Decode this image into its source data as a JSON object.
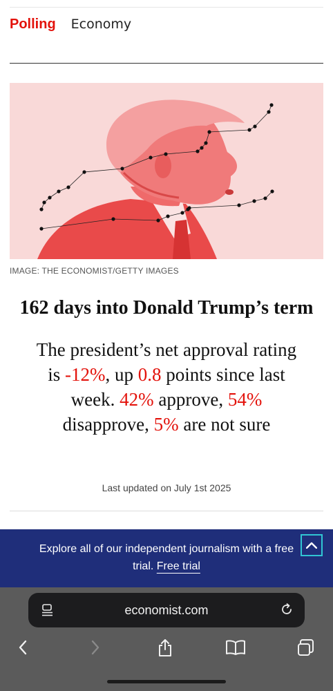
{
  "nav": {
    "tabs": [
      {
        "label": "Polling",
        "active": true
      },
      {
        "label": "Economy",
        "active": false
      }
    ]
  },
  "hero": {
    "image_description": "Red-tinted illustration of Donald Trump in profile with two dotted trend lines",
    "credit": "IMAGE: THE ECONOMIST/GETTY IMAGES"
  },
  "article": {
    "headline": "162 days into Donald Trump’s term",
    "summary": {
      "t1": "The president’s net approval rating is ",
      "net": "-12%",
      "t2": ", up ",
      "change": "0.8",
      "t3": " points since last week. ",
      "approve": "42%",
      "t4": " approve, ",
      "disapprove": "54%",
      "t5": " disapprove, ",
      "not_sure": "5%",
      "t6": " are not sure"
    },
    "updated": "Last updated on July 1st 2025"
  },
  "banner": {
    "text": "Explore all of our independent journalism with a free trial.",
    "link": "Free trial"
  },
  "browser": {
    "url": "economist.com"
  },
  "colors": {
    "accent_red": "#e3120b",
    "banner_blue": "#1f2e7a",
    "focus_teal": "#31c6d4"
  }
}
